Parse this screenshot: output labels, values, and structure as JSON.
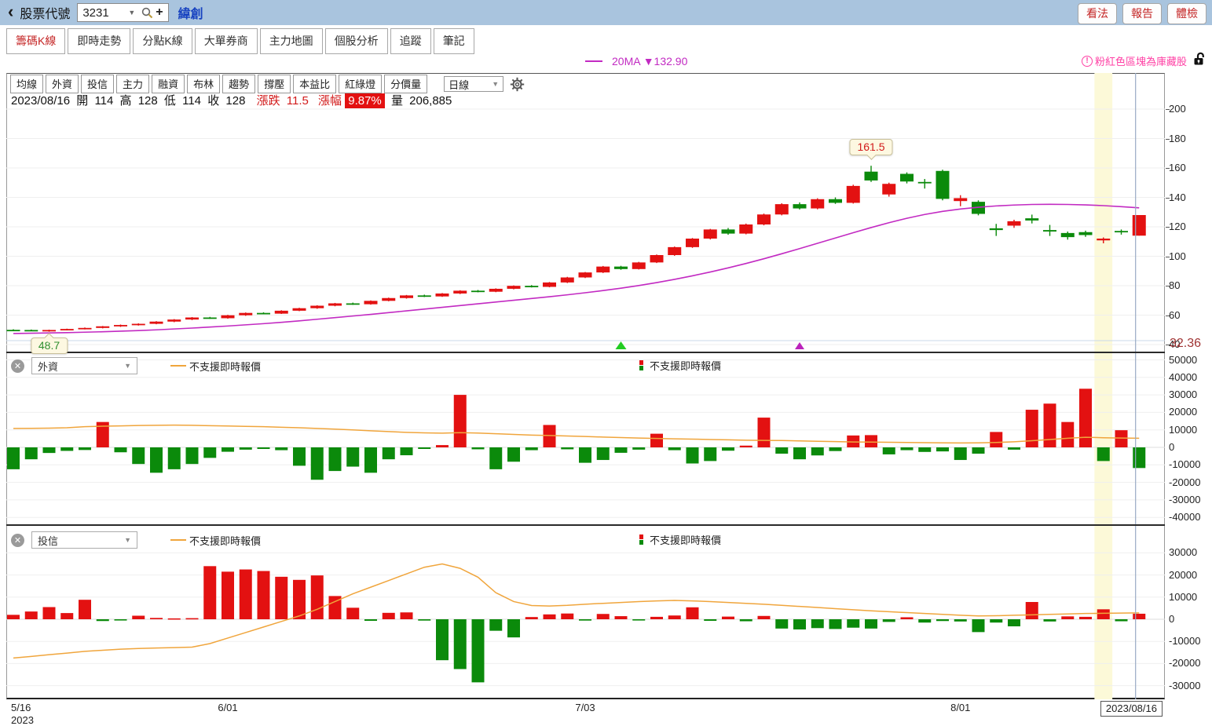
{
  "topbar": {
    "back": "‹",
    "stock_label": "股票代號",
    "stock_input": "3231",
    "stock_name": "緯創",
    "buttons": [
      "看法",
      "報告",
      "體檢"
    ]
  },
  "tabs": {
    "items": [
      "籌碼K線",
      "即時走勢",
      "分點K線",
      "大單券商",
      "主力地圖",
      "個股分析",
      "追蹤",
      "筆記"
    ],
    "active": "籌碼K線"
  },
  "ma_legend": {
    "text": "20MA ▼132.90"
  },
  "notice": {
    "icon": "!",
    "text": "粉紅色區塊為庫藏股"
  },
  "toolbar": {
    "buttons": [
      "均線",
      "外資",
      "投信",
      "主力",
      "融資",
      "布林",
      "趨勢",
      "撐壓",
      "本益比",
      "紅綠燈",
      "分價量"
    ],
    "period": "日線"
  },
  "info": {
    "date": "2023/08/16",
    "open_label": "開",
    "open": "114",
    "high_label": "高",
    "high": "128",
    "low_label": "低",
    "low": "114",
    "close_label": "收",
    "close": "128",
    "change_label": "漲跌",
    "change": "11.5",
    "pct_label": "漲幅",
    "pct": "9.87%",
    "vol_label": "量",
    "volume": "206,885"
  },
  "panels": [
    {
      "key": "foreign",
      "title": "外資",
      "legend_line": "不支援即時報價",
      "legend_candle": "不支援即時報價"
    },
    {
      "key": "trust",
      "title": "投信",
      "legend_line": "不支援即時報價",
      "legend_candle": "不支援即時報價"
    }
  ],
  "colors": {
    "up": "#e31111",
    "down": "#0b8a0b",
    "ma": "#c22ac2",
    "flow_line": "#f0a53c",
    "band": "#fcf9d8",
    "vline": "#99aac4",
    "grid": "#efefef",
    "grid_blue": "#c8d8ea",
    "accent_red": "#c42626",
    "pink": "#ff3fa4",
    "topbar_bg": "#a9c4de",
    "bottom_label": "#a03434",
    "marker_green": "#22cc22",
    "marker_purple": "#bb22bb"
  },
  "chart_data": [
    {
      "type": "candlestick",
      "name": "main-price",
      "y_ticks": [
        200,
        180,
        160,
        140,
        120,
        100,
        80,
        60,
        40
      ],
      "bottom_label": "32.36",
      "x_ticks": [
        {
          "index": 0,
          "label": "5/16",
          "sub": "2023"
        },
        {
          "index": 12,
          "label": "6/01"
        },
        {
          "index": 32,
          "label": "7/03"
        },
        {
          "index": 53,
          "label": "8/01"
        },
        {
          "index": 63,
          "label": "2023/08/16",
          "boxed": true
        }
      ],
      "ohlc": [
        [
          50.0,
          50.4,
          49.4,
          49.9
        ],
        [
          49.9,
          50.2,
          49.2,
          49.5
        ],
        [
          49.6,
          50.1,
          48.7,
          49.9
        ],
        [
          49.9,
          50.8,
          49.6,
          50.6
        ],
        [
          50.6,
          51.6,
          50.3,
          51.3
        ],
        [
          51.3,
          52.6,
          51.0,
          52.4
        ],
        [
          52.4,
          53.6,
          52.0,
          53.3
        ],
        [
          53.3,
          54.4,
          52.9,
          54.1
        ],
        [
          54.1,
          55.9,
          53.8,
          55.6
        ],
        [
          55.6,
          57.3,
          55.2,
          57.0
        ],
        [
          57.0,
          58.7,
          56.6,
          58.4
        ],
        [
          58.4,
          58.8,
          57.5,
          57.9
        ],
        [
          57.9,
          60.2,
          57.6,
          59.9
        ],
        [
          59.9,
          61.8,
          59.5,
          61.5
        ],
        [
          61.5,
          61.9,
          60.6,
          61.0
        ],
        [
          61.0,
          63.3,
          60.8,
          63.0
        ],
        [
          63.0,
          65.0,
          62.7,
          64.7
        ],
        [
          64.7,
          66.7,
          64.3,
          66.4
        ],
        [
          66.4,
          68.3,
          66.0,
          68.0
        ],
        [
          68.0,
          68.5,
          67.0,
          67.4
        ],
        [
          67.4,
          70.0,
          67.1,
          69.7
        ],
        [
          69.7,
          71.9,
          69.4,
          71.6
        ],
        [
          71.6,
          73.7,
          71.2,
          73.4
        ],
        [
          73.4,
          73.9,
          72.3,
          72.7
        ],
        [
          72.7,
          75.0,
          72.4,
          74.7
        ],
        [
          74.7,
          76.9,
          74.3,
          76.6
        ],
        [
          76.6,
          77.1,
          75.5,
          75.9
        ],
        [
          75.9,
          78.2,
          75.6,
          77.9
        ],
        [
          77.9,
          80.2,
          77.5,
          79.9
        ],
        [
          79.9,
          80.4,
          78.8,
          79.2
        ],
        [
          79.2,
          82.5,
          78.9,
          82.2
        ],
        [
          82.2,
          86.0,
          81.8,
          85.6
        ],
        [
          85.6,
          89.3,
          85.2,
          89.0
        ],
        [
          89.0,
          93.4,
          88.6,
          93.0
        ],
        [
          93.0,
          93.5,
          90.8,
          91.3
        ],
        [
          91.3,
          96.2,
          91.0,
          95.8
        ],
        [
          95.8,
          101.2,
          95.4,
          100.8
        ],
        [
          100.8,
          106.6,
          100.3,
          106.2
        ],
        [
          106.2,
          112.4,
          105.7,
          112.0
        ],
        [
          112.0,
          118.6,
          111.4,
          118.2
        ],
        [
          118.2,
          119.2,
          114.6,
          115.4
        ],
        [
          115.4,
          122.2,
          114.9,
          121.6
        ],
        [
          121.6,
          129.0,
          121.0,
          128.4
        ],
        [
          128.4,
          136.0,
          127.8,
          135.4
        ],
        [
          135.4,
          136.6,
          131.8,
          132.5
        ],
        [
          132.5,
          139.4,
          131.9,
          138.8
        ],
        [
          138.8,
          140.0,
          135.6,
          136.3
        ],
        [
          136.3,
          148.6,
          135.8,
          147.8
        ],
        [
          157.5,
          161.5,
          150.5,
          151.5
        ],
        [
          142.0,
          150.0,
          140.5,
          149.2
        ],
        [
          156.0,
          157.0,
          149.5,
          150.8
        ],
        [
          150.5,
          152.5,
          146.0,
          150.2
        ],
        [
          158.0,
          158.8,
          138.0,
          139.0
        ],
        [
          137.5,
          141.5,
          134.0,
          139.5
        ],
        [
          137.0,
          138.0,
          127.8,
          128.8
        ],
        [
          119.0,
          122.0,
          113.8,
          117.8
        ],
        [
          120.8,
          124.8,
          119.3,
          123.8
        ],
        [
          125.8,
          128.3,
          122.3,
          124.3
        ],
        [
          117.8,
          121.3,
          113.8,
          116.8
        ],
        [
          115.8,
          116.8,
          111.3,
          113.0
        ],
        [
          116.4,
          117.4,
          113.2,
          114.4
        ],
        [
          110.8,
          112.8,
          108.8,
          112.0
        ],
        [
          117.2,
          118.2,
          114.7,
          116.5
        ],
        [
          114.0,
          128.0,
          114.0,
          128.0
        ]
      ],
      "ma20": [
        47.5,
        47.7,
        47.9,
        48.1,
        48.4,
        48.7,
        49.1,
        49.5,
        50.0,
        50.6,
        51.2,
        51.9,
        52.6,
        53.4,
        54.2,
        55.1,
        56.1,
        57.2,
        58.3,
        59.4,
        60.5,
        61.7,
        62.9,
        64.1,
        65.3,
        66.5,
        67.7,
        68.9,
        70.1,
        71.3,
        72.5,
        73.8,
        75.2,
        76.7,
        78.3,
        80.1,
        82.1,
        84.3,
        86.7,
        89.3,
        92.1,
        95.1,
        98.3,
        101.7,
        105.2,
        108.8,
        112.4,
        116.0,
        119.5,
        122.8,
        125.8,
        128.4,
        130.5,
        132.1,
        133.3,
        134.2,
        134.8,
        135.2,
        135.3,
        135.2,
        134.9,
        134.4,
        133.7,
        132.9
      ],
      "annotations": [
        {
          "index": 48,
          "value": 161.5,
          "text": "161.5",
          "pos": "above",
          "color": "red"
        },
        {
          "index": 2,
          "value": 48.7,
          "text": "48.7",
          "pos": "below",
          "color": "green"
        }
      ],
      "markers": [
        {
          "index": 34,
          "color": "green"
        },
        {
          "index": 44,
          "color": "purple"
        }
      ],
      "band": {
        "from": 60.5,
        "to": 61.5
      },
      "vline_index": 62.8
    },
    {
      "type": "bar",
      "name": "foreign-flow",
      "y_ticks": [
        50000,
        40000,
        30000,
        20000,
        10000,
        0,
        -10000,
        -20000,
        -30000,
        -40000
      ],
      "values": [
        -12500,
        -6800,
        -3200,
        -2000,
        -1500,
        14500,
        -2800,
        -9500,
        -14500,
        -12500,
        -9500,
        -6000,
        -2500,
        -1300,
        -900,
        -1600,
        -10500,
        -18500,
        -13500,
        -11000,
        -14500,
        -6800,
        -4500,
        -900,
        1300,
        30000,
        -1100,
        -12500,
        -8200,
        -1600,
        12800,
        -1100,
        -8800,
        -7200,
        -3100,
        -1300,
        7800,
        -1600,
        -9200,
        -7800,
        -1900,
        1000,
        17000,
        -3600,
        -6800,
        -4600,
        -2100,
        6800,
        7000,
        -4000,
        -1600,
        -2600,
        -2300,
        -7200,
        -3600,
        8800,
        -1300,
        21500,
        25000,
        14500,
        33500,
        -7800,
        9800,
        -11800
      ],
      "line": [
        10800,
        10900,
        11000,
        11200,
        11800,
        12100,
        12300,
        12500,
        12600,
        12700,
        12600,
        12400,
        12200,
        12000,
        11800,
        11500,
        11200,
        10800,
        10400,
        10000,
        9500,
        9000,
        8600,
        8300,
        8100,
        8400,
        8200,
        7800,
        7400,
        7000,
        6800,
        6500,
        6200,
        5900,
        5600,
        5300,
        5100,
        4900,
        4700,
        4500,
        4300,
        4100,
        4000,
        3900,
        3700,
        3500,
        3300,
        3100,
        3000,
        2900,
        2800,
        2700,
        2600,
        2500,
        2600,
        2800,
        3200,
        3800,
        4500,
        5200,
        5800,
        5500,
        5300,
        5200
      ]
    },
    {
      "type": "bar",
      "name": "trust-flow",
      "y_ticks": [
        30000,
        20000,
        10000,
        0,
        -10000,
        -20000,
        -30000
      ],
      "values": [
        2000,
        3500,
        5500,
        2800,
        8800,
        -800,
        -400,
        1600,
        600,
        400,
        500,
        24000,
        21500,
        22500,
        21800,
        19200,
        17800,
        19800,
        10500,
        5200,
        -700,
        2900,
        3100,
        -600,
        -18500,
        -22500,
        -28500,
        -5200,
        -8200,
        1000,
        2200,
        2600,
        -600,
        2400,
        1400,
        -500,
        1100,
        1700,
        5400,
        -700,
        1200,
        -900,
        1500,
        -4200,
        -4600,
        -4000,
        -4400,
        -3800,
        -4200,
        -1200,
        900,
        -1500,
        -800,
        -1000,
        -5800,
        -1500,
        -3200,
        7800,
        -1000,
        1300,
        1100,
        4500,
        -900,
        2500
      ],
      "line": [
        -17500,
        -16800,
        -16000,
        -15300,
        -14500,
        -14000,
        -13500,
        -13200,
        -13000,
        -12800,
        -12600,
        -11000,
        -8500,
        -6000,
        -3500,
        -1000,
        1500,
        4500,
        8000,
        11500,
        14500,
        17500,
        20500,
        23500,
        25000,
        23000,
        19000,
        12000,
        8000,
        6200,
        6000,
        6300,
        6800,
        7200,
        7600,
        8000,
        8300,
        8500,
        8300,
        8000,
        7600,
        7200,
        6800,
        6300,
        5800,
        5300,
        4800,
        4300,
        3800,
        3400,
        3000,
        2600,
        2200,
        1800,
        1500,
        1600,
        1800,
        2000,
        2200,
        2400,
        2600,
        2700,
        2800,
        2900
      ]
    }
  ]
}
